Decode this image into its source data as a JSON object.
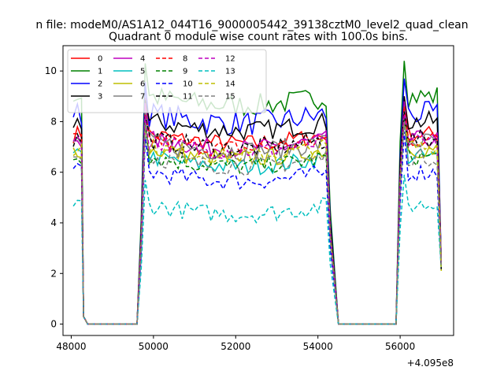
{
  "chart_data": {
    "type": "line",
    "suptitle": "n file: modeM0/AS1A12_044T16_9000005442_39138cztM0_level2_quad_clean",
    "title": "Quadrant 0 module wise count rates with 100.0s bins.",
    "xlabel": "",
    "ylabel": "",
    "x_offset_label": "+4.095e8",
    "xlim": [
      47800,
      57300
    ],
    "ylim": [
      -0.45,
      11.0
    ],
    "x_ticks": [
      48000,
      50000,
      52000,
      54000,
      56000
    ],
    "x_tick_labels": [
      "48000",
      "50000",
      "52000",
      "54000",
      "56000"
    ],
    "y_ticks": [
      0,
      2,
      4,
      6,
      8,
      10
    ],
    "y_tick_labels": [
      "0",
      "2",
      "4",
      "6",
      "8",
      "10"
    ],
    "grid": false,
    "legend_placement": "upper-left",
    "segments": [
      {
        "x_start": 48050,
        "x_end": 48350
      },
      {
        "x_start": 49650,
        "x_end": 54350
      },
      {
        "x_start": 55950,
        "x_end": 56950
      }
    ],
    "gaps": [
      {
        "x_start": 48400,
        "x_end": 49600
      },
      {
        "x_start": 54500,
        "x_end": 55900
      }
    ],
    "series": [
      {
        "name": "0",
        "color": "#ff0000",
        "style": "solid",
        "level": 7.5,
        "jitter": 0.35,
        "peak": 9.0
      },
      {
        "name": "1",
        "color": "#008000",
        "style": "solid",
        "level": 9.0,
        "jitter": 0.45,
        "peak": 10.4
      },
      {
        "name": "2",
        "color": "#0000ff",
        "style": "solid",
        "level": 8.3,
        "jitter": 0.5,
        "peak": 9.7
      },
      {
        "name": "3",
        "color": "#000000",
        "style": "solid",
        "level": 8.0,
        "jitter": 0.4,
        "peak": 9.0
      },
      {
        "name": "4",
        "color": "#bf00bf",
        "style": "solid",
        "level": 7.3,
        "jitter": 0.35,
        "peak": 8.8
      },
      {
        "name": "5",
        "color": "#00bfbf",
        "style": "solid",
        "level": 6.6,
        "jitter": 0.35,
        "peak": 8.3
      },
      {
        "name": "6",
        "color": "#bfbf00",
        "style": "solid",
        "level": 6.9,
        "jitter": 0.35,
        "peak": 8.2
      },
      {
        "name": "7",
        "color": "#808080",
        "style": "solid",
        "level": 7.2,
        "jitter": 0.4,
        "peak": 8.6
      },
      {
        "name": "8",
        "color": "#ff0000",
        "style": "dashed",
        "level": 7.3,
        "jitter": 0.35,
        "peak": 8.6
      },
      {
        "name": "9",
        "color": "#008000",
        "style": "dashed",
        "level": 6.6,
        "jitter": 0.35,
        "peak": 8.1
      },
      {
        "name": "10",
        "color": "#0000ff",
        "style": "dashed",
        "level": 6.0,
        "jitter": 0.35,
        "peak": 7.6
      },
      {
        "name": "11",
        "color": "#000000",
        "style": "dashed",
        "level": 7.3,
        "jitter": 0.4,
        "peak": 8.4
      },
      {
        "name": "12",
        "color": "#bf00bf",
        "style": "dashed",
        "level": 7.2,
        "jitter": 0.35,
        "peak": 8.3
      },
      {
        "name": "13",
        "color": "#00bfbf",
        "style": "dashed",
        "level": 4.7,
        "jitter": 0.35,
        "peak": 5.9
      },
      {
        "name": "14",
        "color": "#bfbf00",
        "style": "dashed",
        "level": 7.0,
        "jitter": 0.35,
        "peak": 8.0
      },
      {
        "name": "15",
        "color": "#808080",
        "style": "dashed",
        "level": 6.6,
        "jitter": 0.35,
        "peak": 8.0
      }
    ]
  }
}
